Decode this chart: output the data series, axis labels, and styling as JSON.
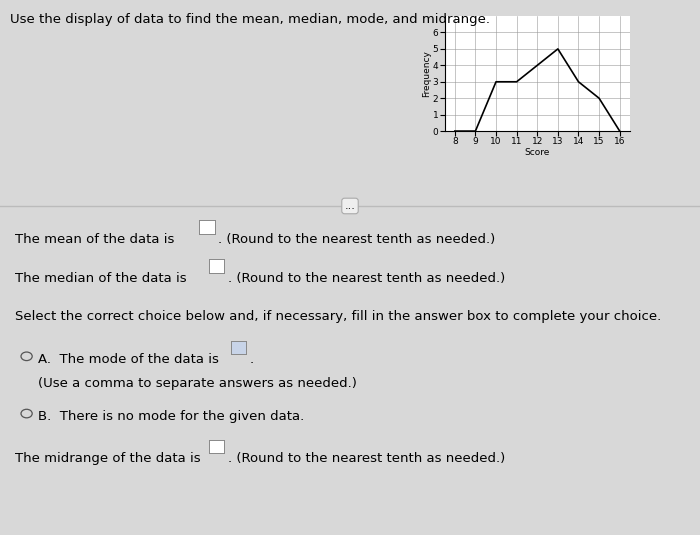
{
  "title": "Use the display of data to find the mean, median, mode, and midrange.",
  "chart_scores": [
    8,
    9,
    10,
    11,
    12,
    13,
    14,
    15,
    16
  ],
  "chart_freqs": [
    0,
    0,
    3,
    3,
    4,
    5,
    3,
    2,
    0
  ],
  "xlabel": "Score",
  "ylabel": "Frequency",
  "xlim": [
    7.5,
    16.5
  ],
  "ylim": [
    0,
    7
  ],
  "yticks": [
    0,
    1,
    2,
    3,
    4,
    5,
    6
  ],
  "xticks": [
    8,
    9,
    10,
    11,
    12,
    13,
    14,
    15,
    16
  ],
  "bg_color": "#d8d8d8",
  "chart_bg": "#ffffff",
  "line_color": "#000000",
  "font_size_text": 9.5,
  "font_size_title": 9.5,
  "font_size_chart": 6.5
}
